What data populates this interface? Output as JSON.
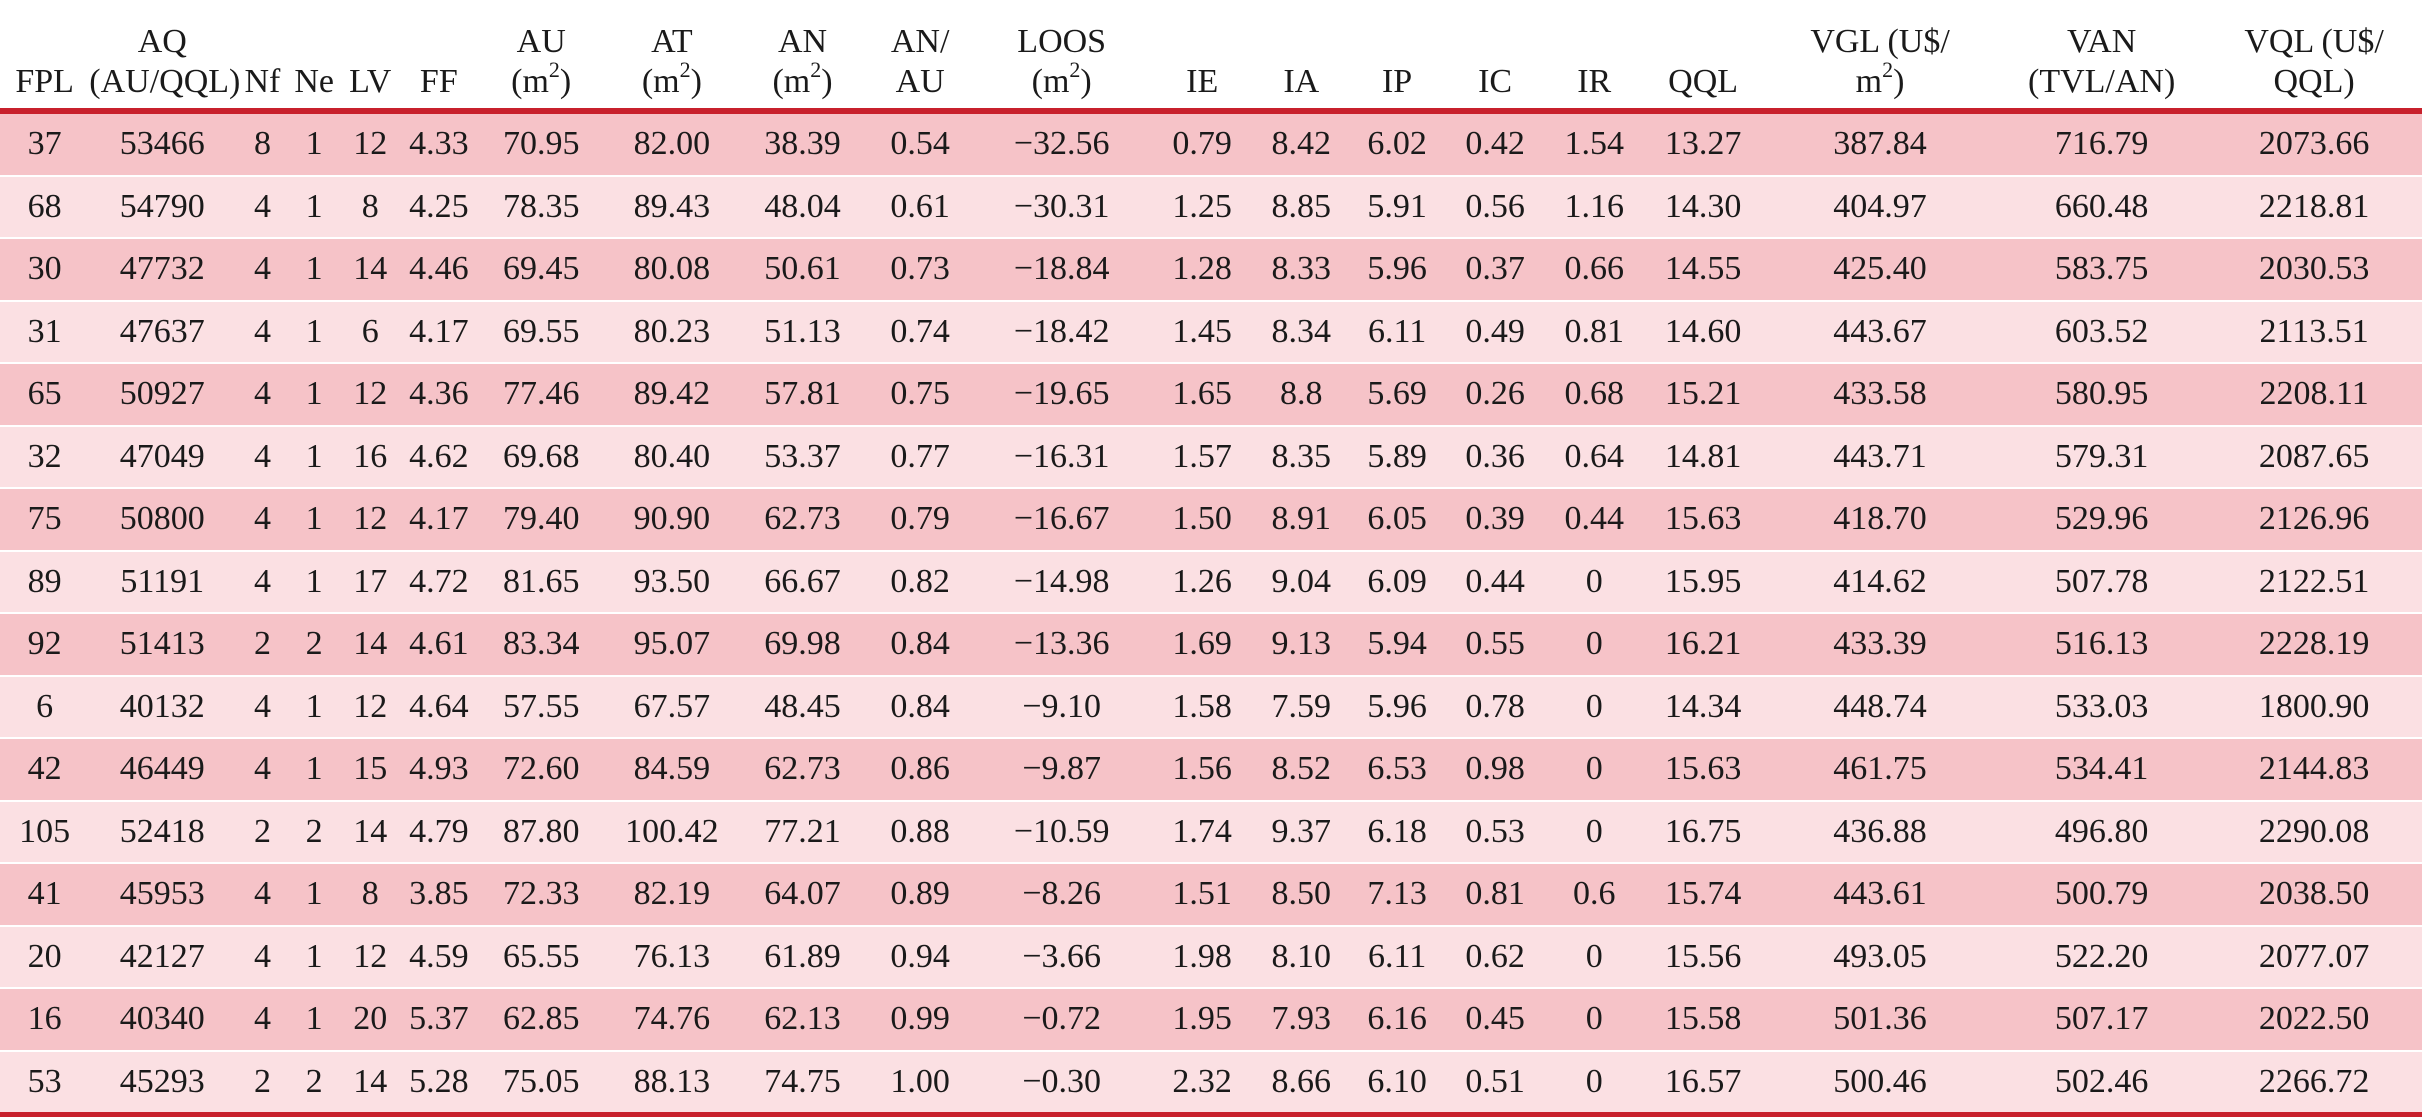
{
  "headers": [
    {
      "l1": "",
      "l2": "FPL"
    },
    {
      "l1": "AQ",
      "l2": "(AU/QQL)"
    },
    {
      "l1": "",
      "l2": "Nf"
    },
    {
      "l1": "",
      "l2": "Ne"
    },
    {
      "l1": "",
      "l2": "LV"
    },
    {
      "l1": "",
      "l2": "FF"
    },
    {
      "l1": "AU",
      "l2": "(m",
      "sup": "2",
      "tail": ")"
    },
    {
      "l1": "AT",
      "l2": "(m",
      "sup": "2",
      "tail": ")"
    },
    {
      "l1": "AN",
      "l2": "(m",
      "sup": "2",
      "tail": ")"
    },
    {
      "l1": "AN/",
      "l2": "AU"
    },
    {
      "l1": "LOOS",
      "l2": "(m",
      "sup": "2",
      "tail": ")"
    },
    {
      "l1": "",
      "l2": "IE"
    },
    {
      "l1": "",
      "l2": "IA"
    },
    {
      "l1": "",
      "l2": "IP"
    },
    {
      "l1": "",
      "l2": "IC"
    },
    {
      "l1": "",
      "l2": "IR"
    },
    {
      "l1": "",
      "l2": "QQL"
    },
    {
      "l1": "VGL (U$/",
      "l2": "m",
      "sup": "2",
      "tail": ")"
    },
    {
      "l1": "VAN",
      "l2": "(TVL/AN)"
    },
    {
      "l1": "VQL (U$/",
      "l2": "QQL)"
    }
  ],
  "rows": [
    [
      "37",
      "53466",
      "8",
      "1",
      "12",
      "4.33",
      "70.95",
      "82.00",
      "38.39",
      "0.54",
      "−32.56",
      "0.79",
      "8.42",
      "6.02",
      "0.42",
      "1.54",
      "13.27",
      "387.84",
      "716.79",
      "2073.66"
    ],
    [
      "68",
      "54790",
      "4",
      "1",
      "8",
      "4.25",
      "78.35",
      "89.43",
      "48.04",
      "0.61",
      "−30.31",
      "1.25",
      "8.85",
      "5.91",
      "0.56",
      "1.16",
      "14.30",
      "404.97",
      "660.48",
      "2218.81"
    ],
    [
      "30",
      "47732",
      "4",
      "1",
      "14",
      "4.46",
      "69.45",
      "80.08",
      "50.61",
      "0.73",
      "−18.84",
      "1.28",
      "8.33",
      "5.96",
      "0.37",
      "0.66",
      "14.55",
      "425.40",
      "583.75",
      "2030.53"
    ],
    [
      "31",
      "47637",
      "4",
      "1",
      "6",
      "4.17",
      "69.55",
      "80.23",
      "51.13",
      "0.74",
      "−18.42",
      "1.45",
      "8.34",
      "6.11",
      "0.49",
      "0.81",
      "14.60",
      "443.67",
      "603.52",
      "2113.51"
    ],
    [
      "65",
      "50927",
      "4",
      "1",
      "12",
      "4.36",
      "77.46",
      "89.42",
      "57.81",
      "0.75",
      "−19.65",
      "1.65",
      "8.8",
      "5.69",
      "0.26",
      "0.68",
      "15.21",
      "433.58",
      "580.95",
      "2208.11"
    ],
    [
      "32",
      "47049",
      "4",
      "1",
      "16",
      "4.62",
      "69.68",
      "80.40",
      "53.37",
      "0.77",
      "−16.31",
      "1.57",
      "8.35",
      "5.89",
      "0.36",
      "0.64",
      "14.81",
      "443.71",
      "579.31",
      "2087.65"
    ],
    [
      "75",
      "50800",
      "4",
      "1",
      "12",
      "4.17",
      "79.40",
      "90.90",
      "62.73",
      "0.79",
      "−16.67",
      "1.50",
      "8.91",
      "6.05",
      "0.39",
      "0.44",
      "15.63",
      "418.70",
      "529.96",
      "2126.96"
    ],
    [
      "89",
      "51191",
      "4",
      "1",
      "17",
      "4.72",
      "81.65",
      "93.50",
      "66.67",
      "0.82",
      "−14.98",
      "1.26",
      "9.04",
      "6.09",
      "0.44",
      "0",
      "15.95",
      "414.62",
      "507.78",
      "2122.51"
    ],
    [
      "92",
      "51413",
      "2",
      "2",
      "14",
      "4.61",
      "83.34",
      "95.07",
      "69.98",
      "0.84",
      "−13.36",
      "1.69",
      "9.13",
      "5.94",
      "0.55",
      "0",
      "16.21",
      "433.39",
      "516.13",
      "2228.19"
    ],
    [
      "6",
      "40132",
      "4",
      "1",
      "12",
      "4.64",
      "57.55",
      "67.57",
      "48.45",
      "0.84",
      "−9.10",
      "1.58",
      "7.59",
      "5.96",
      "0.78",
      "0",
      "14.34",
      "448.74",
      "533.03",
      "1800.90"
    ],
    [
      "42",
      "46449",
      "4",
      "1",
      "15",
      "4.93",
      "72.60",
      "84.59",
      "62.73",
      "0.86",
      "−9.87",
      "1.56",
      "8.52",
      "6.53",
      "0.98",
      "0",
      "15.63",
      "461.75",
      "534.41",
      "2144.83"
    ],
    [
      "105",
      "52418",
      "2",
      "2",
      "14",
      "4.79",
      "87.80",
      "100.42",
      "77.21",
      "0.88",
      "−10.59",
      "1.74",
      "9.37",
      "6.18",
      "0.53",
      "0",
      "16.75",
      "436.88",
      "496.80",
      "2290.08"
    ],
    [
      "41",
      "45953",
      "4",
      "1",
      "8",
      "3.85",
      "72.33",
      "82.19",
      "64.07",
      "0.89",
      "−8.26",
      "1.51",
      "8.50",
      "7.13",
      "0.81",
      "0.6",
      "15.74",
      "443.61",
      "500.79",
      "2038.50"
    ],
    [
      "20",
      "42127",
      "4",
      "1",
      "12",
      "4.59",
      "65.55",
      "76.13",
      "61.89",
      "0.94",
      "−3.66",
      "1.98",
      "8.10",
      "6.11",
      "0.62",
      "0",
      "15.56",
      "493.05",
      "522.20",
      "2077.07"
    ],
    [
      "16",
      "40340",
      "4",
      "1",
      "20",
      "5.37",
      "62.85",
      "74.76",
      "62.13",
      "0.99",
      "−0.72",
      "1.95",
      "7.93",
      "6.16",
      "0.45",
      "0",
      "15.58",
      "501.36",
      "507.17",
      "2022.50"
    ],
    [
      "53",
      "45293",
      "2",
      "2",
      "14",
      "5.28",
      "75.05",
      "88.13",
      "74.75",
      "1.00",
      "−0.30",
      "2.32",
      "8.66",
      "6.10",
      "0.51",
      "0",
      "16.57",
      "500.46",
      "502.46",
      "2266.72"
    ]
  ]
}
